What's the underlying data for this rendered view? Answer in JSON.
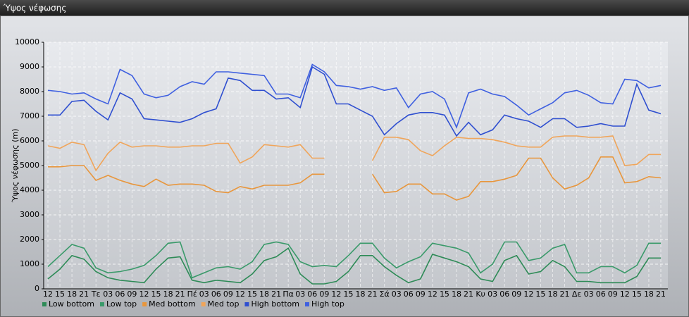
{
  "window_title": "Ύψος νέφωσης",
  "chart_data": {
    "type": "line",
    "y_label": "Ύψος νέφωσης (m)",
    "categories": [
      "12",
      "15",
      "18",
      "21",
      "Τε",
      "03",
      "06",
      "09",
      "12",
      "15",
      "18",
      "21",
      "Πέ",
      "03",
      "06",
      "09",
      "12",
      "15",
      "18",
      "21",
      "Πα",
      "03",
      "06",
      "09",
      "12",
      "15",
      "18",
      "21",
      "Σά",
      "03",
      "06",
      "09",
      "12",
      "15",
      "18",
      "21",
      "Κυ",
      "03",
      "06",
      "09",
      "12",
      "15",
      "18",
      "21",
      "Δε",
      "03",
      "06",
      "09",
      "12",
      "15",
      "18",
      "21"
    ],
    "ylim": [
      0,
      10000
    ],
    "yticks": [
      0,
      1000,
      2000,
      3000,
      4000,
      5000,
      6000,
      7000,
      8000,
      9000,
      10000
    ],
    "grid": true,
    "legend": "bottom-left",
    "series": [
      {
        "name": "Low bottom",
        "color": "#2e8b57",
        "values": [
          400,
          800,
          1350,
          1200,
          700,
          450,
          350,
          300,
          250,
          800,
          1250,
          1300,
          350,
          250,
          350,
          300,
          250,
          600,
          1150,
          1300,
          1650,
          600,
          200,
          200,
          300,
          700,
          1350,
          1350,
          900,
          550,
          250,
          400,
          1400,
          1250,
          1100,
          900,
          400,
          300,
          1150,
          1350,
          600,
          700,
          1150,
          900,
          300,
          300,
          250,
          250,
          250,
          500,
          1250,
          1250
        ]
      },
      {
        "name": "Low top",
        "color": "#3a9a6a",
        "values": [
          900,
          1350,
          1800,
          1650,
          850,
          650,
          700,
          800,
          950,
          1350,
          1850,
          1900,
          450,
          650,
          850,
          900,
          800,
          1100,
          1800,
          1900,
          1800,
          1100,
          900,
          950,
          900,
          1350,
          1850,
          1850,
          1250,
          850,
          1100,
          1300,
          1850,
          1750,
          1650,
          1450,
          650,
          1000,
          1900,
          1900,
          1150,
          1250,
          1650,
          1800,
          650,
          650,
          900,
          900,
          650,
          950,
          1850,
          1850
        ]
      },
      {
        "name": "Med bottom",
        "color": "#e8963c",
        "values": [
          4950,
          4950,
          5000,
          5000,
          4400,
          4600,
          4400,
          4250,
          4150,
          4450,
          4200,
          4250,
          4250,
          4200,
          3950,
          3900,
          4150,
          4050,
          4200,
          4200,
          4200,
          4300,
          4650,
          4650,
          null,
          null,
          null,
          4650,
          3900,
          3950,
          4250,
          4250,
          3850,
          3850,
          3600,
          3750,
          4350,
          4350,
          4450,
          4600,
          5300,
          5300,
          4500,
          4050,
          4200,
          4500,
          5350,
          5350,
          4300,
          4350,
          4550,
          4500
        ]
      },
      {
        "name": "Med top",
        "color": "#f0a55a",
        "values": [
          5800,
          5700,
          5950,
          5850,
          4800,
          5500,
          5950,
          5750,
          5800,
          5800,
          5750,
          5750,
          5800,
          5800,
          5900,
          5900,
          5100,
          5350,
          5850,
          5800,
          5750,
          5850,
          5300,
          5300,
          null,
          null,
          null,
          5200,
          6150,
          6150,
          6050,
          5600,
          5400,
          5800,
          6150,
          6100,
          6100,
          6050,
          5950,
          5800,
          5750,
          5750,
          6150,
          6200,
          6200,
          6150,
          6150,
          6200,
          5000,
          5050,
          5450,
          5450
        ]
      },
      {
        "name": "High bottom",
        "color": "#2f4fd0",
        "values": [
          7050,
          7050,
          7600,
          7650,
          7200,
          6850,
          7950,
          7700,
          6900,
          6850,
          6800,
          6750,
          6900,
          7150,
          7300,
          8550,
          8450,
          8050,
          8050,
          7700,
          7750,
          7350,
          9000,
          8700,
          7500,
          7500,
          7250,
          7000,
          6250,
          6700,
          7050,
          7150,
          7150,
          7050,
          6200,
          6750,
          6250,
          6450,
          7050,
          6900,
          6800,
          6550,
          6900,
          6900,
          6550,
          6600,
          6700,
          6600,
          6600,
          8300,
          7250,
          7100
        ]
      },
      {
        "name": "High top",
        "color": "#3f60e0",
        "values": [
          8050,
          8000,
          7900,
          7950,
          7700,
          7500,
          8900,
          8650,
          7900,
          7750,
          7850,
          8200,
          8400,
          8300,
          8800,
          8800,
          8750,
          8700,
          8650,
          7900,
          7900,
          7750,
          9100,
          8800,
          8250,
          8200,
          8100,
          8200,
          8050,
          8150,
          7350,
          7900,
          8000,
          7700,
          6550,
          7950,
          8100,
          7900,
          7800,
          7450,
          7050,
          7300,
          7550,
          7950,
          8050,
          7850,
          7550,
          7500,
          8500,
          8450,
          8150,
          8250
        ]
      }
    ]
  }
}
